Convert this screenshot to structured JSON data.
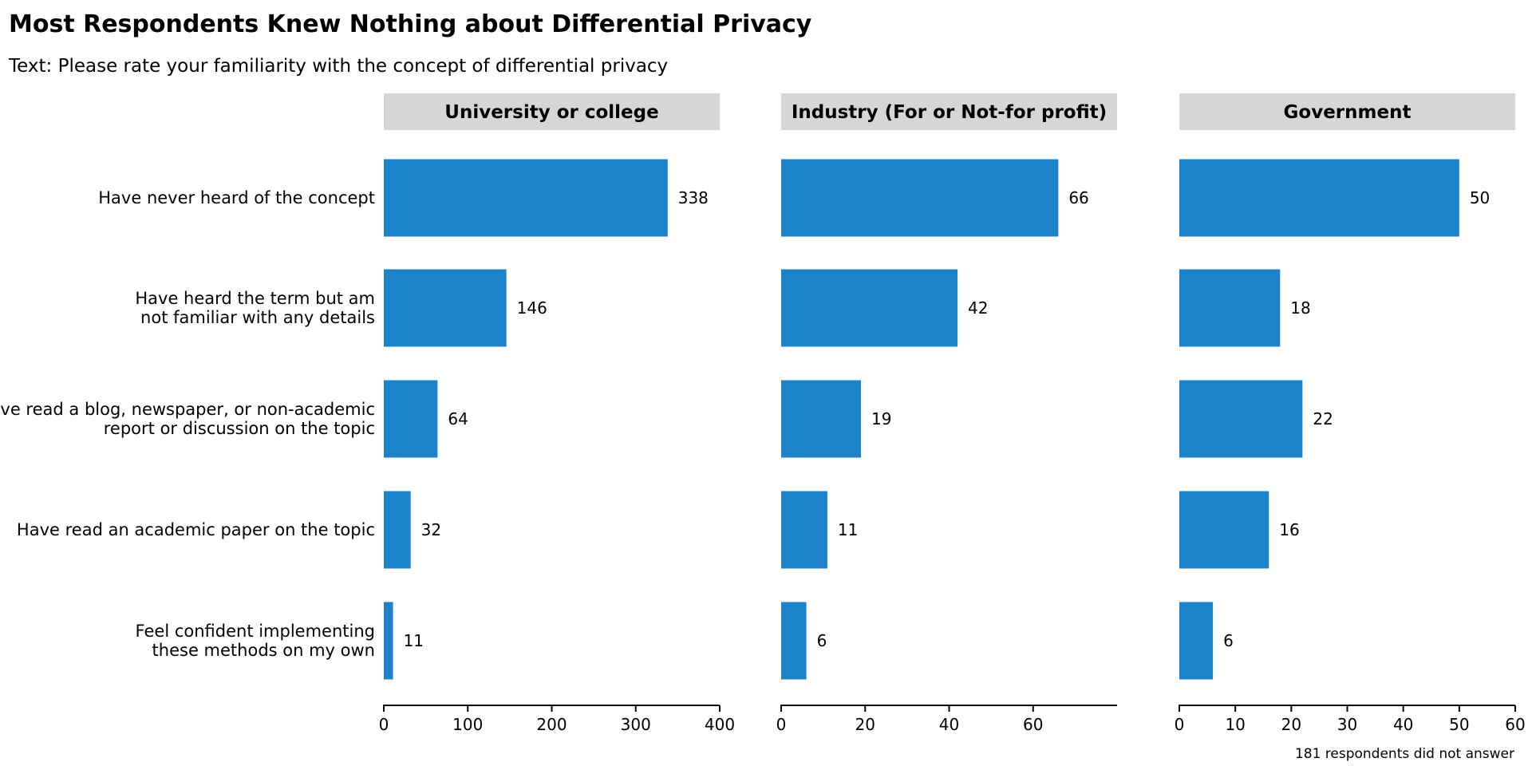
{
  "chart_data": {
    "type": "bar",
    "orientation": "horizontal",
    "title": "Most Respondents Knew Nothing about Differential Privacy",
    "subtitle": "Text: Please rate your familiarity with the concept of differential privacy",
    "caption": "181 respondents did not answer",
    "bar_color": "#1c83cb",
    "strip_color": "#d6d6d6",
    "categories": [
      [
        "Have never heard of the concept"
      ],
      [
        "Have heard the term but am",
        "not familiar with any details"
      ],
      [
        "Have read a blog, newspaper, or non-academic",
        "report or discussion on the topic"
      ],
      [
        "Have read an academic paper on the topic"
      ],
      [
        "Feel confident implementing",
        "these methods on my own"
      ]
    ],
    "panels": [
      {
        "name": "University or college",
        "values": [
          338,
          146,
          64,
          32,
          11
        ],
        "xlim": [
          0,
          400
        ],
        "ticks": [
          0,
          100,
          200,
          300,
          400
        ]
      },
      {
        "name": "Industry (For or Not-for profit)",
        "values": [
          66,
          42,
          19,
          11,
          6
        ],
        "xlim": [
          0,
          80
        ],
        "ticks": [
          0,
          20,
          40,
          60
        ]
      },
      {
        "name": "Government",
        "values": [
          50,
          18,
          22,
          16,
          6
        ],
        "xlim": [
          0,
          60
        ],
        "ticks": [
          0,
          10,
          20,
          30,
          40,
          50,
          60
        ]
      }
    ],
    "grid": false,
    "legend": "none"
  }
}
